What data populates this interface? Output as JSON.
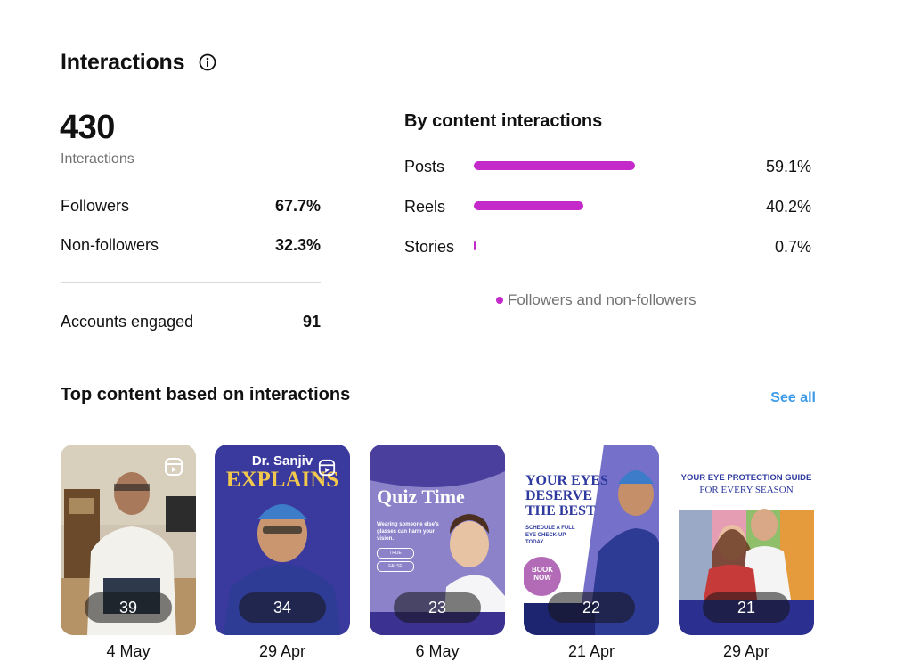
{
  "header": {
    "title": "Interactions"
  },
  "summary": {
    "total": "430",
    "total_label": "Interactions",
    "rows": [
      {
        "label": "Followers",
        "value": "67.7%"
      },
      {
        "label": "Non-followers",
        "value": "32.3%"
      }
    ],
    "accounts_label": "Accounts engaged",
    "accounts_value": "91"
  },
  "by_content": {
    "title": "By content interactions",
    "items": [
      {
        "label": "Posts",
        "value": "59.1%",
        "share": 0.591
      },
      {
        "label": "Reels",
        "value": "40.2%",
        "share": 0.402
      },
      {
        "label": "Stories",
        "value": "0.7%",
        "share": 0.007
      }
    ],
    "legend": "Followers and non-followers",
    "bar_color": "#c32ac9"
  },
  "top_content": {
    "title": "Top content based on interactions",
    "see_all": "See all",
    "link_color": "#3d9be9",
    "items": [
      {
        "count": "39",
        "date": "4 May",
        "kind": "reel-photo"
      },
      {
        "count": "34",
        "date": "29 Apr",
        "kind": "reel-graphic",
        "overlay": [
          "Dr. Sanjiv",
          "EXPLAINS"
        ]
      },
      {
        "count": "23",
        "date": "6 May",
        "kind": "post-graphic",
        "overlay": [
          "Quiz Time",
          "Wearing someone else's glasses can harm your vision.",
          "TRUE",
          "FALSE"
        ]
      },
      {
        "count": "22",
        "date": "21 Apr",
        "kind": "post-graphic",
        "overlay": [
          "YOUR EYES",
          "DESERVE",
          "THE BEST",
          "SCHEDULE A FULL EYE CHECK-UP TODAY",
          "BOOK NOW"
        ]
      },
      {
        "count": "21",
        "date": "29 Apr",
        "kind": "post-graphic",
        "overlay": [
          "YOUR EYE PROTECTION GUIDE",
          "FOR EVERY SEASON"
        ]
      }
    ]
  }
}
